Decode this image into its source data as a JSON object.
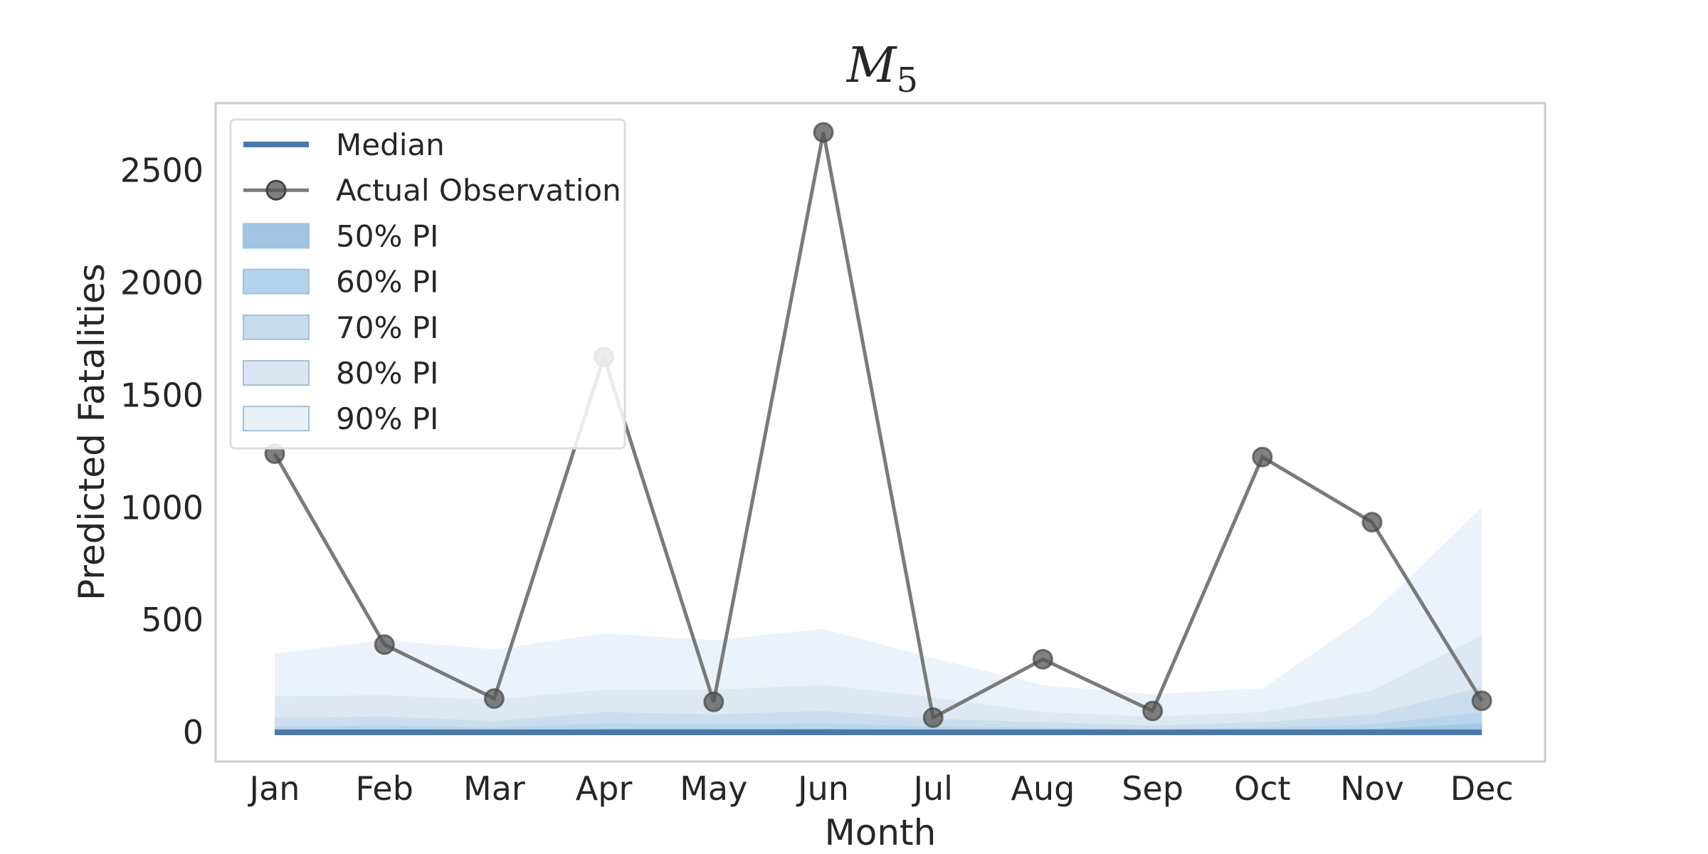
{
  "chart_data": {
    "type": "line",
    "title": {
      "main": "M",
      "subscript": "5"
    },
    "xlabel": "Month",
    "ylabel": "Predicted Fatalities",
    "categories": [
      "Jan",
      "Feb",
      "Mar",
      "Apr",
      "May",
      "Jun",
      "Jul",
      "Aug",
      "Sep",
      "Oct",
      "Nov",
      "Dec"
    ],
    "ylim": [
      -130,
      2800
    ],
    "yticks": [
      0,
      500,
      1000,
      1500,
      2000,
      2500
    ],
    "grid": false,
    "legend": {
      "placement": "upper-left",
      "entries": [
        "Median",
        "Actual Observation",
        "50% PI",
        "60% PI",
        "70% PI",
        "80% PI",
        "90% PI"
      ]
    },
    "median": [
      0,
      0,
      0,
      0,
      0,
      0,
      0,
      0,
      0,
      0,
      0,
      0
    ],
    "actual": [
      1240,
      390,
      150,
      1670,
      135,
      2670,
      65,
      325,
      95,
      1225,
      935,
      140
    ],
    "intervals": [
      {
        "name": "90% PI",
        "upper": [
          350,
          410,
          370,
          440,
          410,
          460,
          330,
          210,
          170,
          195,
          530,
          1000
        ],
        "color": "#e9f0f8"
      },
      {
        "name": "80% PI",
        "upper": [
          160,
          165,
          145,
          190,
          190,
          210,
          155,
          90,
          70,
          90,
          185,
          430
        ],
        "color": "#dae6f2"
      },
      {
        "name": "70% PI",
        "upper": [
          65,
          70,
          50,
          90,
          80,
          95,
          60,
          45,
          30,
          45,
          80,
          200
        ],
        "color": "#c7dced"
      },
      {
        "name": "60% PI",
        "upper": [
          25,
          30,
          20,
          40,
          35,
          40,
          25,
          20,
          12,
          20,
          35,
          90
        ],
        "color": "#b5d3ea"
      },
      {
        "name": "50% PI",
        "upper": [
          10,
          12,
          8,
          15,
          15,
          16,
          10,
          8,
          5,
          8,
          15,
          40
        ],
        "color": "#a0c4e2"
      }
    ],
    "colors": {
      "median": "#4a78ac",
      "actual_line": "#7a7a7a",
      "actual_marker": "#555555",
      "frame": "#cccccc"
    }
  }
}
